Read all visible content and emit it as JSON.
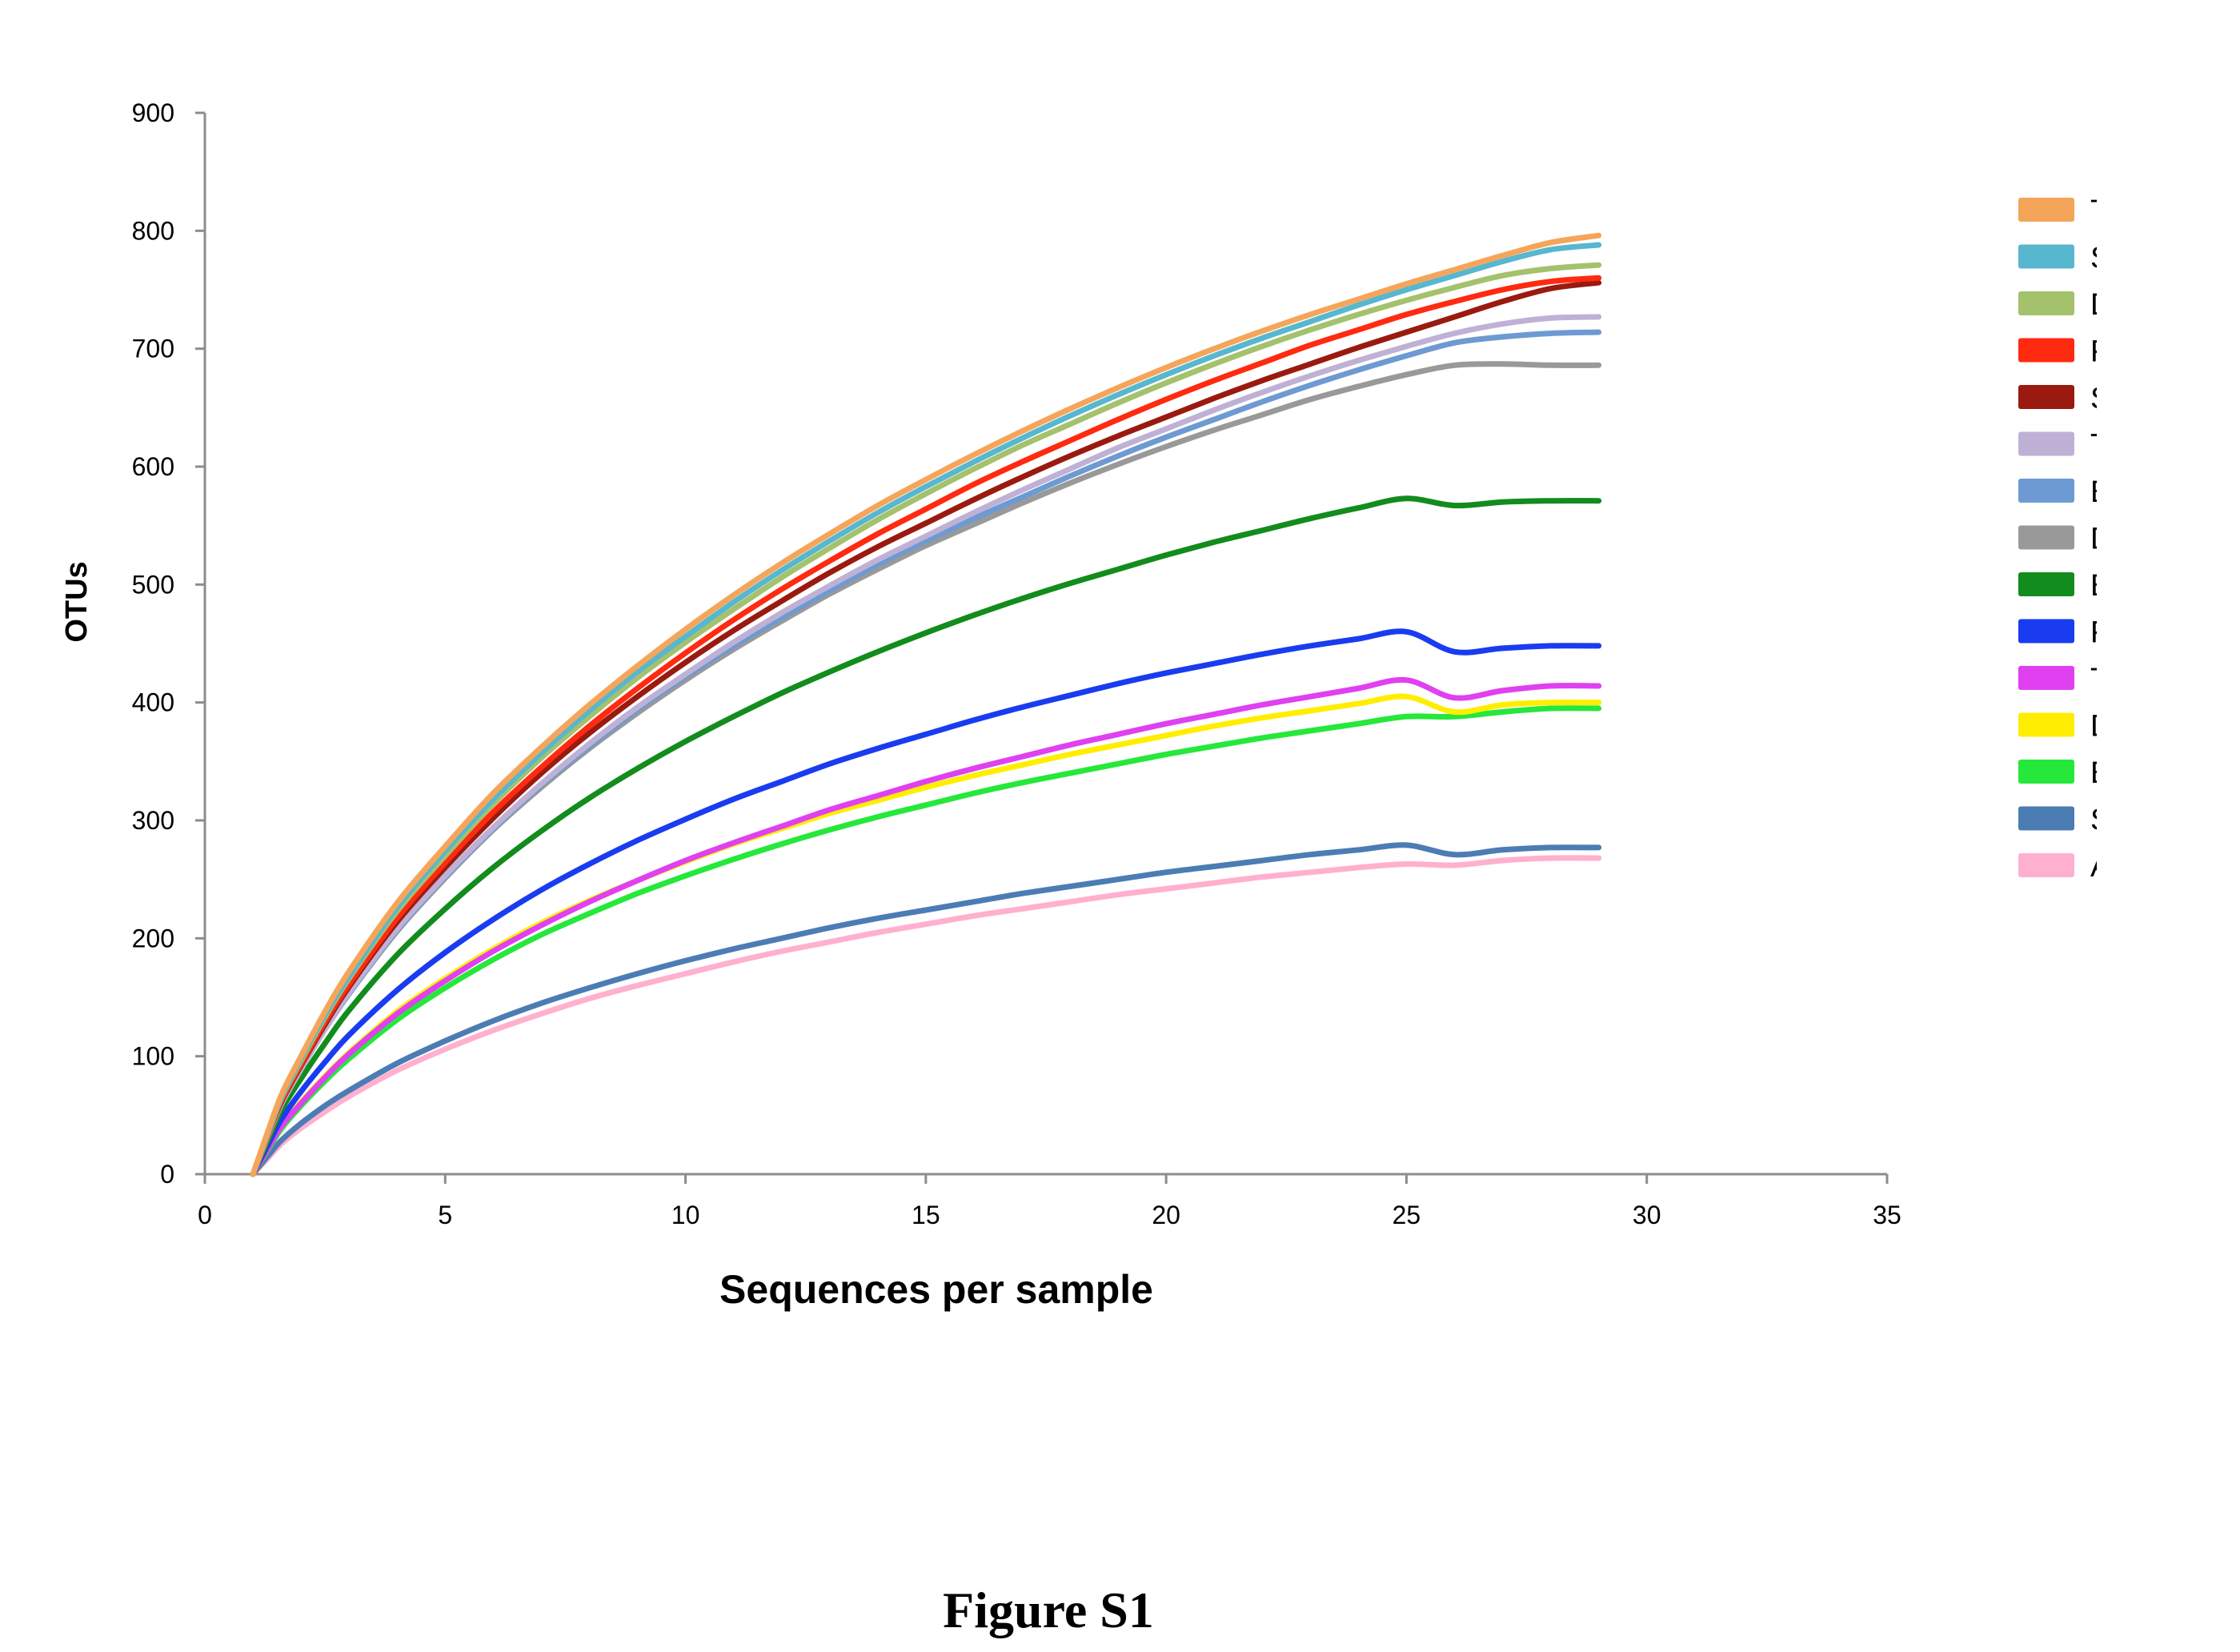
{
  "caption": "Figure S1",
  "chart_data": {
    "type": "line",
    "title": "",
    "xlabel": "Sequences per sample",
    "ylabel": "OTUs",
    "xlim": [
      0,
      35
    ],
    "ylim": [
      0,
      900
    ],
    "xticks": [
      0,
      5,
      10,
      15,
      20,
      25,
      30,
      35
    ],
    "yticks": [
      0,
      100,
      200,
      300,
      400,
      500,
      600,
      700,
      800,
      900
    ],
    "grid": false,
    "legend_position": "right",
    "x": [
      1,
      1.3,
      1.6,
      2,
      2.5,
      3,
      4,
      5,
      6,
      7,
      8,
      9,
      10,
      11,
      12,
      13,
      14,
      15,
      16,
      17,
      18,
      19,
      20,
      21,
      22,
      23,
      24,
      25,
      26,
      27,
      28,
      29
    ],
    "series": [
      {
        "name": "TF-L",
        "color": "#f5a55a",
        "values": [
          0,
          35,
          68,
          100,
          138,
          172,
          230,
          278,
          323,
          362,
          398,
          431,
          462,
          491,
          518,
          543,
          567,
          589,
          610,
          630,
          649,
          667,
          684,
          700,
          715,
          729,
          742,
          755,
          767,
          779,
          790,
          796
        ]
      },
      {
        "name": "SC-L",
        "color": "#57b7cf",
        "values": [
          0,
          34,
          66,
          98,
          135,
          168,
          226,
          274,
          318,
          357,
          393,
          426,
          456,
          485,
          512,
          537,
          561,
          583,
          604,
          624,
          643,
          661,
          678,
          694,
          709,
          723,
          737,
          750,
          762,
          774,
          784,
          788
        ]
      },
      {
        "name": "DG-L",
        "color": "#a4c16c",
        "values": [
          0,
          33,
          65,
          96,
          133,
          166,
          223,
          270,
          314,
          353,
          388,
          421,
          451,
          479,
          506,
          531,
          555,
          577,
          598,
          618,
          636,
          654,
          671,
          687,
          702,
          716,
          729,
          741,
          752,
          762,
          768,
          771
        ]
      },
      {
        "name": "FP-L",
        "color": "#ff2a10",
        "values": [
          0,
          32,
          63,
          93,
          129,
          161,
          217,
          264,
          307,
          345,
          380,
          412,
          442,
          470,
          496,
          520,
          543,
          564,
          585,
          604,
          622,
          640,
          657,
          673,
          688,
          703,
          716,
          729,
          740,
          750,
          757,
          760
        ]
      },
      {
        "name": "SC-L",
        "color": "#9a1a10",
        "values": [
          0,
          32,
          62,
          92,
          127,
          159,
          214,
          260,
          302,
          340,
          374,
          405,
          434,
          461,
          486,
          510,
          532,
          552,
          572,
          591,
          609,
          626,
          642,
          658,
          673,
          687,
          701,
          714,
          727,
          740,
          751,
          756
        ]
      },
      {
        "name": "TF-H",
        "color": "#bfb1d6",
        "values": [
          0,
          31,
          60,
          89,
          123,
          154,
          208,
          253,
          294,
          331,
          365,
          396,
          424,
          451,
          476,
          499,
          521,
          541,
          561,
          580,
          598,
          616,
          632,
          648,
          663,
          677,
          690,
          702,
          713,
          721,
          726,
          727
        ]
      },
      {
        "name": "BE-L",
        "color": "#6d9ad2",
        "values": [
          0,
          31,
          60,
          89,
          123,
          153,
          207,
          252,
          293,
          330,
          363,
          394,
          422,
          448,
          472,
          495,
          517,
          537,
          556,
          574,
          592,
          609,
          625,
          640,
          655,
          669,
          682,
          694,
          705,
          710,
          713,
          714
        ]
      },
      {
        "name": "DG-H",
        "color": "#999999",
        "values": [
          0,
          31,
          60,
          89,
          123,
          153,
          206,
          251,
          292,
          328,
          361,
          391,
          419,
          445,
          469,
          492,
          513,
          533,
          551,
          569,
          586,
          602,
          617,
          631,
          644,
          657,
          668,
          678,
          686,
          687,
          686,
          686
        ]
      },
      {
        "name": "BE-H",
        "color": "#128c1c",
        "values": [
          0,
          28,
          55,
          81,
          111,
          139,
          186,
          225,
          260,
          291,
          319,
          344,
          367,
          388,
          408,
          426,
          443,
          459,
          474,
          488,
          501,
          513,
          525,
          536,
          546,
          556,
          565,
          573,
          567,
          570,
          571,
          571
        ]
      },
      {
        "name": "FP-H",
        "color": "#1a3cf0",
        "values": [
          0,
          24,
          47,
          70,
          95,
          118,
          156,
          188,
          216,
          241,
          263,
          283,
          301,
          318,
          333,
          348,
          361,
          373,
          385,
          396,
          406,
          416,
          425,
          433,
          441,
          448,
          454,
          460,
          443,
          446,
          448,
          448
        ]
      },
      {
        "name": "TF-R",
        "color": "#e040f0",
        "values": [
          0,
          21,
          41,
          60,
          82,
          102,
          136,
          164,
          189,
          211,
          231,
          249,
          266,
          281,
          295,
          309,
          321,
          333,
          344,
          354,
          364,
          373,
          382,
          390,
          398,
          405,
          412,
          419,
          404,
          410,
          414,
          414
        ]
      },
      {
        "name": "DG-R",
        "color": "#ffee00",
        "values": [
          0,
          21,
          41,
          61,
          83,
          103,
          138,
          166,
          191,
          213,
          232,
          249,
          265,
          280,
          293,
          306,
          317,
          328,
          338,
          347,
          356,
          364,
          372,
          380,
          387,
          393,
          399,
          405,
          392,
          398,
          400,
          400
        ]
      },
      {
        "name": "BE-R",
        "color": "#25e83a",
        "values": [
          0,
          20,
          39,
          58,
          79,
          98,
          131,
          158,
          182,
          203,
          221,
          238,
          253,
          267,
          280,
          292,
          303,
          313,
          323,
          332,
          340,
          348,
          356,
          363,
          370,
          376,
          382,
          388,
          388,
          392,
          395,
          395
        ]
      },
      {
        "name": "SC-R",
        "color": "#4c7cb4",
        "values": [
          0,
          15,
          29,
          43,
          58,
          71,
          94,
          113,
          130,
          145,
          158,
          170,
          181,
          191,
          200,
          209,
          217,
          224,
          231,
          238,
          244,
          250,
          256,
          261,
          266,
          271,
          275,
          279,
          271,
          275,
          277,
          277
        ]
      },
      {
        "name": "AO-R",
        "color": "#ffb0cf",
        "values": [
          0,
          13,
          26,
          39,
          53,
          66,
          88,
          106,
          122,
          136,
          149,
          160,
          170,
          180,
          189,
          197,
          205,
          212,
          219,
          225,
          231,
          237,
          242,
          247,
          252,
          256,
          260,
          263,
          262,
          266,
          268,
          268
        ]
      }
    ]
  }
}
